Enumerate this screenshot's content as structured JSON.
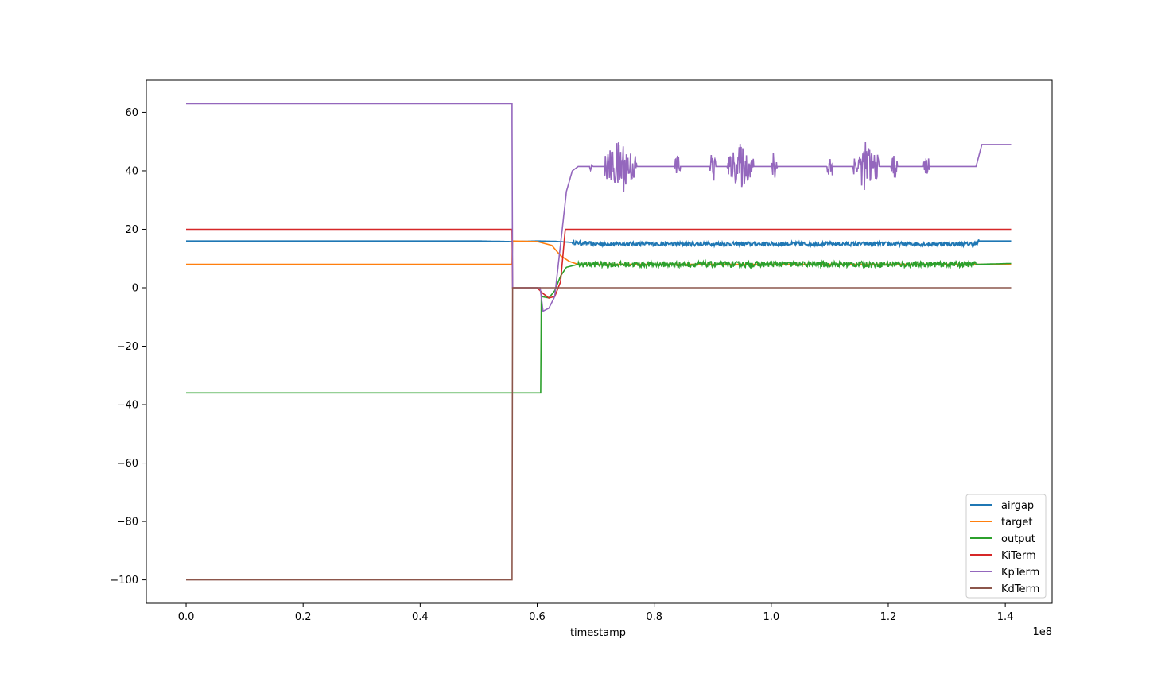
{
  "chart_data": {
    "type": "line",
    "xlabel": "timestamp",
    "ylabel": "",
    "x_offset_label": "1e8",
    "xlim": [
      -0.068,
      1.48
    ],
    "ylim": [
      -108,
      71
    ],
    "xticks": [
      0.0,
      0.2,
      0.4,
      0.6,
      0.8,
      1.0,
      1.2,
      1.4
    ],
    "xtick_labels": [
      "0.0",
      "0.2",
      "0.4",
      "0.6",
      "0.8",
      "1.0",
      "1.2",
      "1.4"
    ],
    "yticks": [
      60,
      40,
      20,
      0,
      -20,
      -40,
      -60,
      -80,
      -100
    ],
    "ytick_labels": [
      "60",
      "40",
      "20",
      "0",
      "−20",
      "−40",
      "−60",
      "−80",
      "−100"
    ],
    "legend_position": "lower right",
    "series": [
      {
        "name": "airgap",
        "color": "#1f77b4",
        "x": [
          0,
          0.5,
          0.557,
          0.6,
          0.63,
          0.66,
          0.7,
          1.0,
          1.35,
          1.355,
          1.41
        ],
        "y": [
          16,
          16,
          15.8,
          16,
          15.9,
          15.5,
          15,
          15,
          15,
          16,
          16
        ],
        "noise": {
          "from": 0.66,
          "to": 1.355,
          "amp": 0.7
        }
      },
      {
        "name": "target",
        "color": "#ff7f0e",
        "x": [
          0,
          0.557,
          0.558,
          0.6,
          0.625,
          0.64,
          0.655,
          0.67,
          1.41
        ],
        "y": [
          8,
          8,
          16,
          15.8,
          14.5,
          11,
          9,
          8,
          8
        ]
      },
      {
        "name": "output",
        "color": "#2ca02c",
        "x": [
          0,
          0.606,
          0.607,
          0.62,
          0.63,
          0.64,
          0.65,
          0.67,
          1.35,
          1.41
        ],
        "y": [
          -36,
          -36,
          -3,
          -3.5,
          -1,
          4,
          7,
          8,
          8,
          8.3
        ],
        "noise": {
          "from": 0.67,
          "to": 1.35,
          "amp": 1.0
        }
      },
      {
        "name": "KiTerm",
        "color": "#d62728",
        "x": [
          0,
          0.557,
          0.558,
          0.6,
          0.61,
          0.62,
          0.63,
          0.64,
          0.648,
          1.41
        ],
        "y": [
          20,
          20,
          0,
          0,
          -2,
          -3.5,
          -3,
          2,
          20,
          20
        ]
      },
      {
        "name": "KpTerm",
        "color": "#9467bd",
        "x": [
          0,
          0.557,
          0.558,
          0.605,
          0.61,
          0.62,
          0.63,
          0.64,
          0.65,
          0.66,
          0.67,
          0.7,
          1.35,
          1.36,
          1.41
        ],
        "y": [
          63,
          63,
          0,
          0,
          -8,
          -7,
          -3,
          15,
          33,
          40,
          41.5,
          41.5,
          41.5,
          49,
          49
        ],
        "bursts": [
          [
            0.69,
            0.695,
            2
          ],
          [
            0.715,
            0.77,
            10
          ],
          [
            0.835,
            0.845,
            7
          ],
          [
            0.895,
            0.905,
            7
          ],
          [
            0.925,
            0.97,
            8
          ],
          [
            1.0,
            1.01,
            7
          ],
          [
            1.095,
            1.105,
            7
          ],
          [
            1.14,
            1.185,
            9
          ],
          [
            1.205,
            1.215,
            6
          ],
          [
            1.26,
            1.27,
            6
          ]
        ]
      },
      {
        "name": "KdTerm",
        "color": "#8c564b",
        "x": [
          0,
          0.557,
          0.558,
          1.41
        ],
        "y": [
          -100,
          -100,
          0,
          0
        ]
      }
    ]
  }
}
